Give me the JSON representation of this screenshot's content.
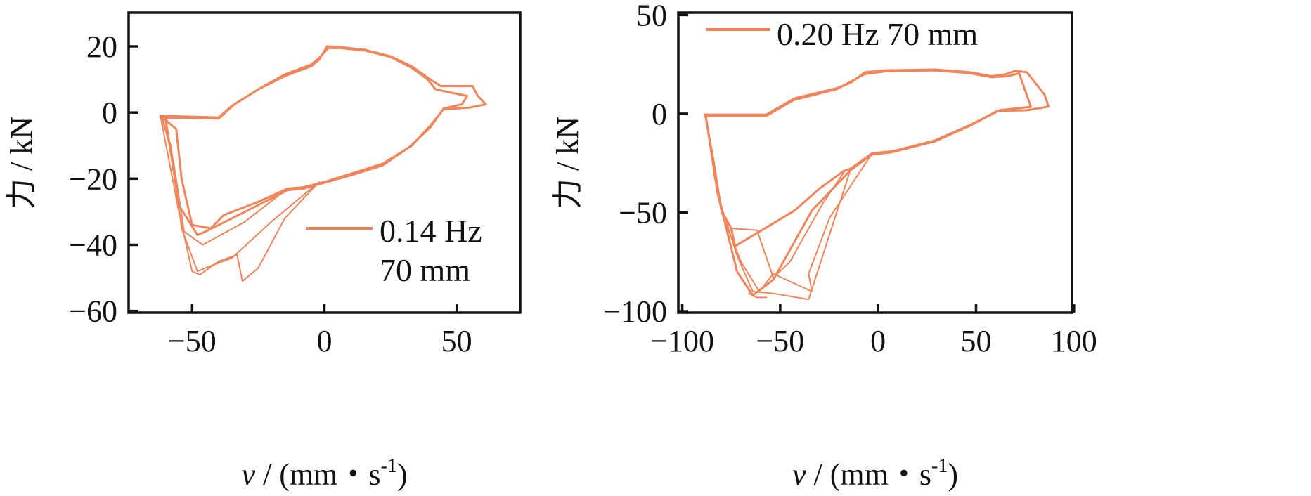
{
  "chart_data": [
    {
      "type": "line",
      "title": "",
      "ylabel": "力 / kN",
      "xlabel": {
        "var": "v",
        "unit": " / (mm・s",
        "sup": "-1",
        "close": ")"
      },
      "xlim": [
        -74,
        74
      ],
      "ylim": [
        -60.5,
        30.2
      ],
      "xticks": [
        -50,
        0,
        50
      ],
      "xtick_labels": [
        "−50",
        "0",
        "50"
      ],
      "yticks": [
        20,
        0,
        -20,
        -40,
        -60
      ],
      "ytick_labels": [
        "20",
        "0",
        "−20",
        "−40",
        "−60"
      ],
      "grid": false,
      "legend": {
        "placement": "bottom-right",
        "lines": [
          "0.14 Hz",
          "70 mm"
        ]
      },
      "color": "#F0845A",
      "series": [
        {
          "name": "0.14 Hz 70 mm",
          "cycles": [
            [
              [
                -62,
                -1
              ],
              [
                -40,
                -1.5
              ],
              [
                -35,
                2
              ],
              [
                -25,
                7
              ],
              [
                -15,
                11
              ],
              [
                -5,
                14
              ],
              [
                -2,
                16
              ],
              [
                1,
                20
              ],
              [
                6,
                19.8
              ],
              [
                15,
                19
              ],
              [
                25,
                17
              ],
              [
                33,
                14
              ],
              [
                40,
                10
              ],
              [
                44,
                8
              ],
              [
                50,
                8
              ],
              [
                56,
                8
              ],
              [
                58,
                5
              ],
              [
                61,
                2.5
              ],
              [
                55,
                1.5
              ],
              [
                45,
                1
              ],
              [
                40,
                -4
              ],
              [
                33,
                -10
              ],
              [
                22,
                -15.5
              ],
              [
                10,
                -18.5
              ],
              [
                0,
                -21
              ],
              [
                -8,
                -22.6
              ],
              [
                -14,
                -23
              ],
              [
                -25,
                -27
              ],
              [
                -38,
                -31
              ],
              [
                -43,
                -35
              ],
              [
                -50,
                -34
              ],
              [
                -54,
                -20
              ],
              [
                -56,
                -5
              ],
              [
                -62,
                -1
              ]
            ],
            [
              [
                -62,
                -1.5
              ],
              [
                -40,
                -1.8
              ],
              [
                -34,
                2.5
              ],
              [
                -24,
                7.5
              ],
              [
                -15,
                11.5
              ],
              [
                -5,
                14.5
              ],
              [
                -2,
                16.5
              ],
              [
                1.5,
                19.5
              ],
              [
                6,
                19.5
              ],
              [
                15,
                18.8
              ],
              [
                25,
                16.8
              ],
              [
                33,
                13.5
              ],
              [
                39,
                10
              ],
              [
                42,
                7
              ],
              [
                48,
                6
              ],
              [
                54,
                5
              ],
              [
                52,
                2.5
              ],
              [
                45,
                1.2
              ],
              [
                40,
                -4.5
              ],
              [
                32,
                -10.5
              ],
              [
                22,
                -16
              ],
              [
                10,
                -19
              ],
              [
                0,
                -21.2
              ],
              [
                -8,
                -23
              ],
              [
                -14,
                -23.5
              ],
              [
                -30,
                -30
              ],
              [
                -45,
                -36
              ],
              [
                -48,
                -37
              ],
              [
                -55,
                -28
              ],
              [
                -60,
                -2
              ]
            ],
            [
              [
                -14,
                -23
              ],
              [
                -30,
                -33
              ],
              [
                -46,
                -40
              ],
              [
                -53,
                -36
              ],
              [
                -57,
                -15
              ],
              [
                -61,
                -2
              ]
            ],
            [
              [
                -2,
                -21
              ],
              [
                -20,
                -33
              ],
              [
                -35,
                -44
              ],
              [
                -45,
                -47
              ],
              [
                -48,
                -48
              ],
              [
                -54,
                -35
              ],
              [
                -58,
                -10
              ],
              [
                -62,
                -1
              ]
            ],
            [
              [
                -2,
                -21
              ],
              [
                -15,
                -32
              ],
              [
                -25,
                -47
              ],
              [
                -31,
                -51
              ],
              [
                -33,
                -43
              ],
              [
                -40,
                -45
              ],
              [
                -47,
                -49
              ],
              [
                -50,
                -48
              ],
              [
                -55,
                -30
              ],
              [
                -62,
                -1
              ]
            ]
          ]
        }
      ]
    },
    {
      "type": "line",
      "title": "",
      "ylabel": "力 / kN",
      "xlabel": {
        "var": "v",
        "unit": " / (mm・s",
        "sup": "-1",
        "close": ")"
      },
      "xlim": [
        -102,
        99
      ],
      "ylim": [
        -100.7,
        51.2
      ],
      "xticks": [
        -100,
        -50,
        0,
        50,
        100
      ],
      "xtick_labels": [
        "−100",
        "−50",
        "0",
        "50",
        "100"
      ],
      "yticks": [
        50,
        0,
        -50,
        -100
      ],
      "ytick_labels": [
        "50",
        "0",
        "−50",
        "−100"
      ],
      "grid": false,
      "legend": {
        "placement": "top-left",
        "lines": [
          "0.20 Hz 70 mm"
        ]
      },
      "color": "#F0845A",
      "series": [
        {
          "name": "0.20 Hz 70 mm",
          "cycles": [
            [
              [
                -88.3,
                -0.4
              ],
              [
                -57,
                -0.4
              ],
              [
                -42.7,
                7.8
              ],
              [
                -21,
                13
              ],
              [
                -14,
                15.7
              ],
              [
                -6.8,
                21
              ],
              [
                4,
                22
              ],
              [
                29,
                22.4
              ],
              [
                47,
                21
              ],
              [
                58,
                19
              ],
              [
                65,
                20
              ],
              [
                70,
                21.7
              ],
              [
                76,
                21
              ],
              [
                85,
                9.6
              ],
              [
                87,
                3.6
              ],
              [
                76,
                1.8
              ],
              [
                61,
                1.4
              ],
              [
                47,
                -5.7
              ],
              [
                29,
                -13.5
              ],
              [
                7.5,
                -19
              ],
              [
                -3,
                -20
              ],
              [
                -14,
                -27.8
              ],
              [
                -17.6,
                -29
              ],
              [
                -30,
                -38
              ],
              [
                -42.7,
                -49
              ],
              [
                -51.7,
                -54.4
              ],
              [
                -73,
                -67
              ],
              [
                -75,
                -58
              ],
              [
                -80,
                -49
              ],
              [
                -84,
                -24
              ],
              [
                -88.3,
                -0.4
              ]
            ],
            [
              [
                -88,
                -1
              ],
              [
                -57,
                -1
              ],
              [
                -43,
                7
              ],
              [
                -21,
                12.5
              ],
              [
                -7,
                20
              ],
              [
                4,
                21.5
              ],
              [
                29,
                22
              ],
              [
                47,
                20.5
              ],
              [
                58,
                18.5
              ],
              [
                66,
                19
              ],
              [
                72,
                20.5
              ],
              [
                78,
                3.5
              ],
              [
                62,
                1.8
              ],
              [
                47,
                -6
              ],
              [
                29,
                -14
              ],
              [
                7,
                -19.5
              ],
              [
                -3,
                -20.5
              ],
              [
                -14,
                -28.5
              ],
              [
                -33.8,
                -49
              ],
              [
                -53.5,
                -84
              ],
              [
                -64,
                -92
              ],
              [
                -72,
                -80
              ],
              [
                -82,
                -40
              ],
              [
                -88,
                -1
              ]
            ],
            [
              [
                -3,
                -20
              ],
              [
                -24.8,
                -52.7
              ],
              [
                -35.5,
                -81
              ],
              [
                -33.8,
                -90
              ],
              [
                -53.5,
                -81
              ],
              [
                -60.7,
                -90
              ],
              [
                -70,
                -75
              ],
              [
                -78,
                -55
              ],
              [
                -84,
                -30
              ]
            ],
            [
              [
                -3,
                -20
              ],
              [
                -14,
                -28
              ],
              [
                -35.5,
                -94
              ],
              [
                -53.5,
                -91
              ],
              [
                -64,
                -90
              ],
              [
                -72,
                -72
              ],
              [
                -79,
                -50
              ]
            ],
            [
              [
                -75,
                -58
              ],
              [
                -61.8,
                -59
              ],
              [
                -53.5,
                -83
              ],
              [
                -45,
                -75
              ],
              [
                -40,
                -66
              ],
              [
                -28,
                -45
              ],
              [
                -17,
                -29
              ]
            ],
            [
              [
                -66,
                -91
              ],
              [
                -62,
                -93
              ],
              [
                -57,
                -93
              ]
            ]
          ]
        }
      ]
    }
  ]
}
